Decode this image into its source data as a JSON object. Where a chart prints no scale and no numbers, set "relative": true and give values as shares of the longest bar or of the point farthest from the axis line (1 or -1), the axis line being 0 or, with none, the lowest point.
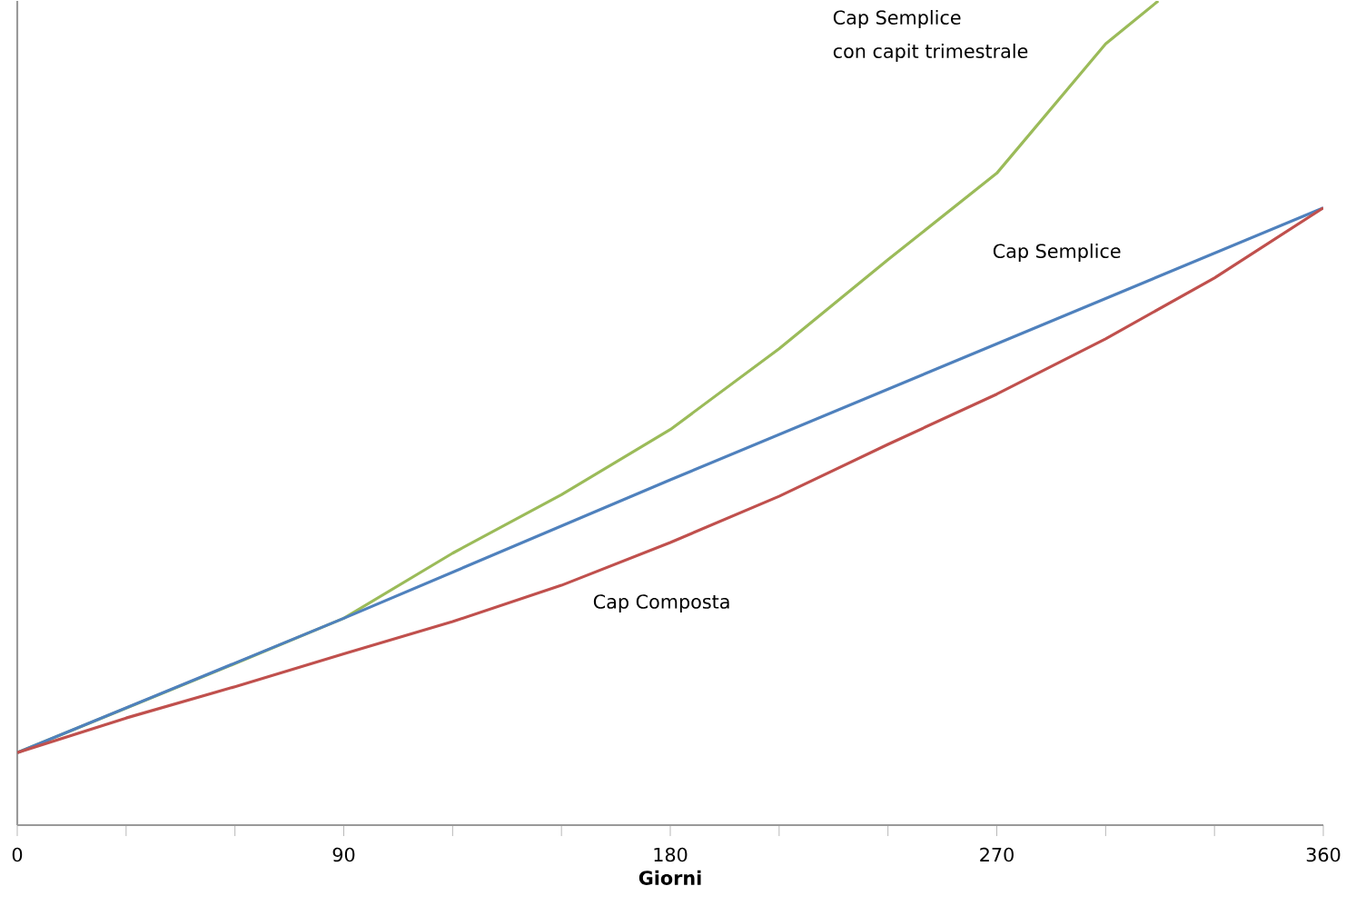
{
  "chart_data": {
    "type": "line",
    "relative": true,
    "xlabel": "Giorni",
    "marker": "none",
    "line_style": "solid",
    "xlim": [
      0,
      360
    ],
    "xticks": [
      0,
      {
        "value": 30,
        "label": null
      },
      {
        "value": 60,
        "label": null
      },
      90,
      {
        "value": 120,
        "label": null
      },
      {
        "value": 150,
        "label": null
      },
      180,
      {
        "value": 210,
        "label": null
      },
      {
        "value": 240,
        "label": null
      },
      270,
      {
        "value": 300,
        "label": null
      },
      {
        "value": 330,
        "label": null
      },
      360
    ],
    "series": [
      {
        "color": "#9bbb59",
        "x": [
          0,
          30,
          60,
          90,
          120,
          150,
          180,
          210,
          240,
          270,
          300,
          314.5
        ],
        "values": [
          0.088,
          0.142,
          0.196,
          0.251,
          0.33,
          0.401,
          0.48,
          0.578,
          0.686,
          0.791,
          0.948,
          1
        ]
      },
      {
        "color": "#4f81bd",
        "x": [
          0,
          90,
          180,
          270,
          360
        ],
        "values": [
          0.088,
          0.251,
          0.419,
          0.584,
          0.749
        ]
      },
      {
        "color": "#c0504d",
        "x": [
          0,
          30,
          60,
          90,
          120,
          150,
          180,
          210,
          240,
          270,
          300,
          330,
          360
        ],
        "values": [
          0.088,
          0.13,
          0.168,
          0.208,
          0.247,
          0.291,
          0.343,
          0.399,
          0.462,
          0.523,
          0.59,
          0.664,
          0.749
        ]
      }
    ],
    "annotations": [
      "Cap Semplice",
      "con capit trimestrale",
      "Cap Semplice",
      "Cap Composta"
    ]
  }
}
